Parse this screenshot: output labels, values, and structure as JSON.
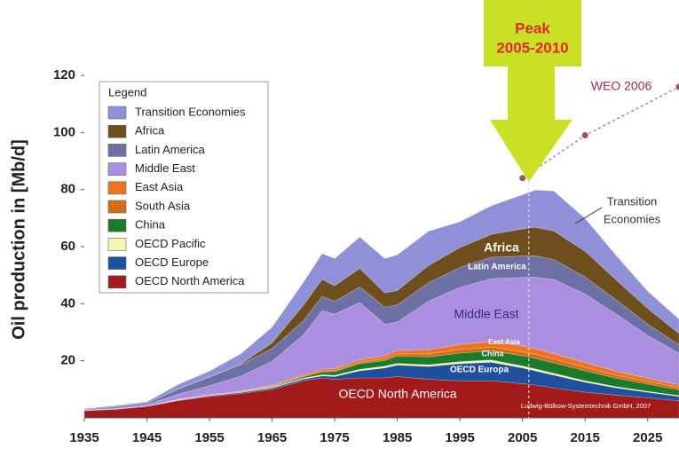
{
  "chart_data": {
    "type": "stacked_area",
    "ylabel": "Oil production in [Mb/d]",
    "legend_title": "Legend",
    "x": [
      1935,
      1940,
      1945,
      1950,
      1955,
      1960,
      1965,
      1970,
      1973,
      1975,
      1979,
      1983,
      1985,
      1990,
      1995,
      2000,
      2005,
      2007,
      2010,
      2015,
      2020,
      2025,
      2030
    ],
    "series": [
      {
        "name": "Transition Economies",
        "color": "#8f90d8",
        "values": [
          0.3,
          0.4,
          0.5,
          1.5,
          2,
          3.5,
          5.5,
          8,
          9,
          9.5,
          11,
          12,
          12.5,
          12,
          9,
          10,
          12,
          13,
          14,
          11.5,
          8.5,
          6,
          5
        ]
      },
      {
        "name": "Africa",
        "color": "#6e4e1c",
        "values": [
          0,
          0,
          0,
          0.1,
          0.1,
          0.3,
          2,
          5.5,
          6,
          5.5,
          6.5,
          5,
          5,
          6,
          7,
          8,
          9.5,
          10,
          10,
          9,
          7,
          5.5,
          4
        ]
      },
      {
        "name": "Latin America",
        "color": "#6c70a4",
        "values": [
          0.2,
          0.5,
          0.5,
          1.8,
          3,
          4,
          4.5,
          5,
          5,
          4.5,
          5.5,
          6,
          6,
          6.5,
          7,
          7.5,
          7.5,
          7.5,
          7,
          6,
          5,
          4,
          3
        ]
      },
      {
        "name": "Middle East",
        "color": "#aa8fe0",
        "values": [
          0.1,
          0.3,
          0.5,
          1.8,
          3.2,
          5.2,
          8.4,
          13.8,
          20.5,
          19,
          20,
          11,
          10,
          17,
          20,
          22,
          24,
          25,
          26,
          24,
          20,
          15,
          11
        ]
      },
      {
        "name": "East Asia",
        "color": "#f07222",
        "values": [
          0,
          0,
          0,
          0.1,
          0.1,
          0.2,
          0.3,
          0.5,
          0.6,
          0.7,
          0.9,
          1,
          1.2,
          1.5,
          1.8,
          2,
          2,
          2,
          1.9,
          1.7,
          1.4,
          1.2,
          1
        ]
      },
      {
        "name": "South Asia",
        "color": "#d46c12",
        "values": [
          0,
          0,
          0,
          0.1,
          0.1,
          0.1,
          0.2,
          0.3,
          0.4,
          0.4,
          0.5,
          0.7,
          0.8,
          1,
          1.2,
          1.3,
          1.4,
          1.4,
          1.3,
          1.2,
          1,
          0.9,
          0.8
        ]
      },
      {
        "name": "China",
        "color": "#1b7a2c",
        "values": [
          0,
          0,
          0,
          0,
          0,
          0.1,
          0.2,
          0.5,
          1,
          1.3,
          2,
          2,
          2.5,
          2.8,
          3,
          3.2,
          3.6,
          3.7,
          3.7,
          3.5,
          3,
          2.5,
          2
        ]
      },
      {
        "name": "OECD Pacific",
        "color": "#f8f4b2",
        "values": [
          0,
          0,
          0,
          0.1,
          0.1,
          0.1,
          0.2,
          0.3,
          0.4,
          0.4,
          0.5,
          0.6,
          0.6,
          0.6,
          0.7,
          0.8,
          0.7,
          0.7,
          0.6,
          0.5,
          0.4,
          0.3,
          0.3
        ]
      },
      {
        "name": "OECD Europe",
        "color": "#1f4f9f",
        "values": [
          0.1,
          0.1,
          0.1,
          0.2,
          0.3,
          0.4,
          0.5,
          0.6,
          0.7,
          1,
          2.5,
          3.5,
          4,
          4.5,
          6,
          6.5,
          5.5,
          5,
          4.5,
          3.5,
          2.5,
          2,
          1.5
        ]
      },
      {
        "name": "OECD North America",
        "color": "#a21a1a",
        "values": [
          2.5,
          3,
          4,
          6,
          7.5,
          8.5,
          10,
          13,
          14,
          13.5,
          14,
          14,
          14.5,
          13.5,
          13,
          13,
          12,
          11.5,
          10.5,
          9,
          8,
          7,
          6
        ]
      }
    ],
    "forecast": {
      "name": "WEO 2006",
      "color": "#a05060",
      "x": [
        2005,
        2015,
        2030
      ],
      "values": [
        84,
        99,
        116
      ]
    },
    "peak": {
      "title": "Peak",
      "range": "2005-2010",
      "x": 2006
    },
    "annotations": [
      "Transition",
      "Economies",
      "Africa",
      "Latin America",
      "Middle East",
      "East Asia",
      "China",
      "OECD Europa",
      "OECD North America"
    ],
    "credit": "Ludwig-Bölkow-Systemtechnik GmbH, 2007",
    "xlim": [
      1935,
      2030
    ],
    "ylim": [
      0,
      120
    ],
    "xticks": [
      1935,
      1945,
      1955,
      1965,
      1975,
      1985,
      1995,
      2005,
      2015,
      2025
    ],
    "yticks": [
      20,
      40,
      60,
      80,
      100,
      120
    ]
  }
}
